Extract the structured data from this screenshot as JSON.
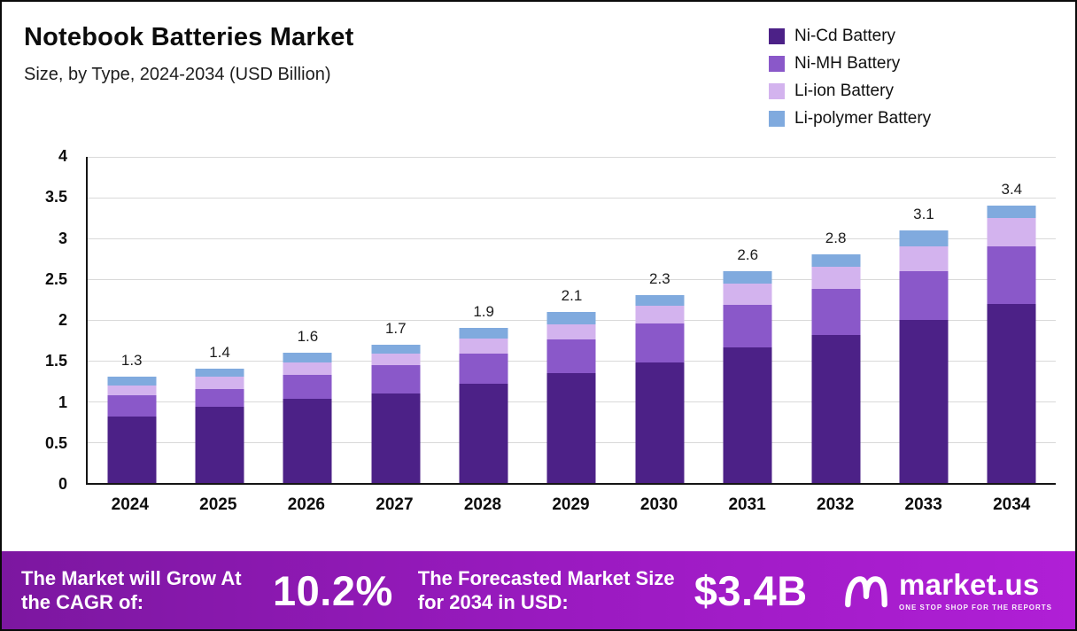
{
  "header": {
    "title": "Notebook Batteries Market",
    "subtitle": "Size, by Type, 2024-2034 (USD Billion)"
  },
  "chart_data": {
    "type": "bar",
    "stacked": true,
    "title": "Notebook Batteries Market Size, by Type, 2024-2034 (USD Billion)",
    "categories": [
      "2024",
      "2025",
      "2026",
      "2027",
      "2028",
      "2029",
      "2030",
      "2031",
      "2032",
      "2033",
      "2034"
    ],
    "series": [
      {
        "name": "Ni-Cd Battery",
        "color": "#4c2187",
        "values": [
          0.82,
          0.93,
          1.03,
          1.1,
          1.22,
          1.35,
          1.48,
          1.66,
          1.81,
          2.0,
          2.2
        ]
      },
      {
        "name": "Ni-MH Battery",
        "color": "#8a58c9",
        "values": [
          0.26,
          0.22,
          0.3,
          0.35,
          0.37,
          0.41,
          0.48,
          0.52,
          0.57,
          0.6,
          0.7
        ]
      },
      {
        "name": "Li-ion Battery",
        "color": "#d3b3ee",
        "values": [
          0.12,
          0.15,
          0.15,
          0.14,
          0.18,
          0.19,
          0.21,
          0.27,
          0.27,
          0.3,
          0.35
        ]
      },
      {
        "name": "Li-polymer Battery",
        "color": "#80aade",
        "values": [
          0.1,
          0.1,
          0.12,
          0.11,
          0.13,
          0.15,
          0.13,
          0.15,
          0.15,
          0.2,
          0.15
        ]
      }
    ],
    "totals": [
      "1.3",
      "1.4",
      "1.6",
      "1.7",
      "1.9",
      "2.1",
      "2.3",
      "2.6",
      "2.8",
      "3.1",
      "3.4"
    ],
    "xlabel": "",
    "ylabel": "",
    "ylim": [
      0,
      4
    ],
    "yticks": [
      "0",
      "0.5",
      "1",
      "1.5",
      "2",
      "2.5",
      "3",
      "3.5",
      "4"
    ],
    "grid": true,
    "legend_position": "top-right"
  },
  "footer": {
    "cagr_label": "The Market will Grow At the CAGR of:",
    "cagr_value": "10.2%",
    "forecast_label": "The Forecasted Market Size for 2034 in USD:",
    "forecast_value": "$3.4B",
    "brand": "market.us",
    "brand_tagline": "ONE STOP SHOP FOR THE REPORTS"
  }
}
